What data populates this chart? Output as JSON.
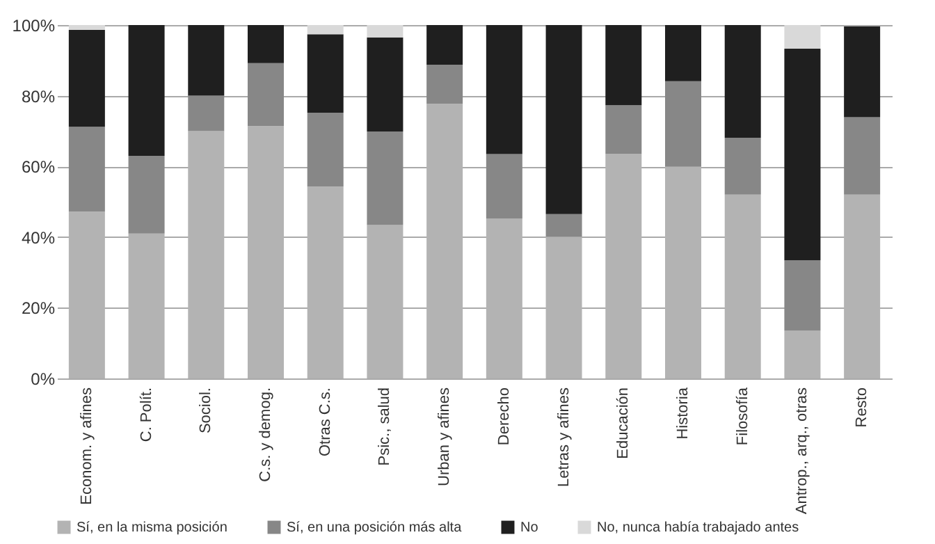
{
  "chart_data": {
    "type": "bar",
    "stacked": true,
    "categories": [
      "Econom. y afines",
      "C. Polít.",
      "Sociol.",
      "C.s. y demog.",
      "Otras C.s.",
      "Psic., salud",
      "Urban y afines",
      "Derecho",
      "Letras y afines",
      "Educación",
      "Historia",
      "Filosofía",
      "Antrop., arq., otras",
      "Resto"
    ],
    "series": [
      {
        "name": "Sí, en la misma posición",
        "color": "#b3b3b3",
        "values": [
          47.2,
          41,
          70,
          71.4,
          54.3,
          43.4,
          77.7,
          45.3,
          40.1,
          63.6,
          59.9,
          52,
          13.5,
          52
        ]
      },
      {
        "name": "Sí, en una posición más alta",
        "color": "#878787",
        "values": [
          24,
          22,
          10,
          17.8,
          20.9,
          26.5,
          11.1,
          18.2,
          6.4,
          13.7,
          24.2,
          16.1,
          19.9,
          21.9
        ]
      },
      {
        "name": "No",
        "color": "#1f1f1f",
        "values": [
          27.4,
          37,
          20,
          10.8,
          22.2,
          26.6,
          11.2,
          36.5,
          53.5,
          22.7,
          15.9,
          31.9,
          59.9,
          25.7
        ]
      },
      {
        "name": "No, nunca había trabajado antes",
        "color": "#d9d9d9",
        "values": [
          1.4,
          0,
          0,
          0,
          2.6,
          3.5,
          0,
          0,
          0,
          0,
          0,
          0,
          6.7,
          0
        ]
      }
    ],
    "ylim": [
      0,
      100
    ],
    "yticks": [
      {
        "value": 0,
        "label": "0%"
      },
      {
        "value": 20,
        "label": "20%"
      },
      {
        "value": 40,
        "label": "40%"
      },
      {
        "value": 60,
        "label": "60%"
      },
      {
        "value": 80,
        "label": "80%"
      },
      {
        "value": 100,
        "label": "100%"
      }
    ],
    "grid": "y",
    "legend": "bottom"
  }
}
